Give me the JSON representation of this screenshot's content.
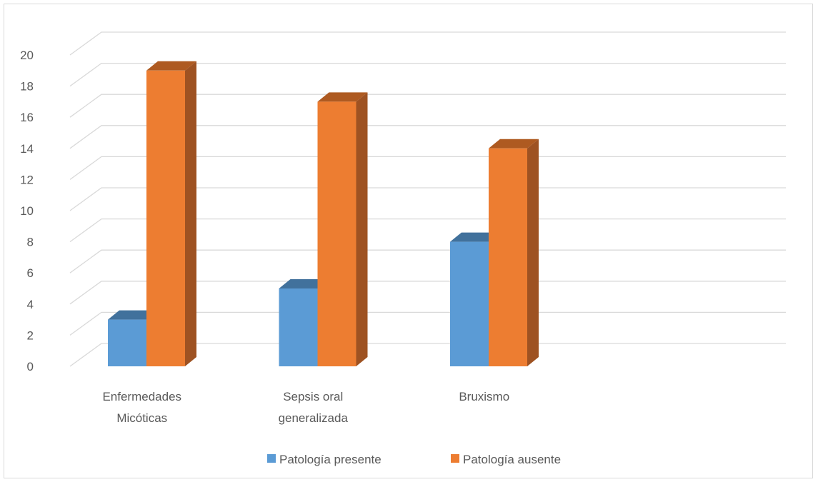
{
  "chart_data": {
    "type": "bar",
    "style": "3d-clustered-column",
    "categories": [
      [
        "Enfermedades",
        "Micóticas"
      ],
      [
        "Sepsis oral",
        "generalizada"
      ],
      [
        "Bruxismo"
      ],
      [
        ""
      ]
    ],
    "series": [
      {
        "name": "Patología presente",
        "values": [
          3,
          5,
          8,
          null
        ],
        "color": "#5b9bd5",
        "side_color": "#41719c",
        "top_color": "#41719c"
      },
      {
        "name": "Patología ausente",
        "values": [
          19,
          17,
          14,
          null
        ],
        "color": "#ed7d31",
        "side_color": "#9e5222",
        "top_color": "#ae5a21"
      }
    ],
    "yticks": [
      0,
      2,
      4,
      6,
      8,
      10,
      12,
      14,
      16,
      18,
      20
    ],
    "ylim": [
      0,
      21
    ],
    "grid": true,
    "legend_position": "bottom",
    "title": "",
    "xlabel": "",
    "ylabel": ""
  }
}
